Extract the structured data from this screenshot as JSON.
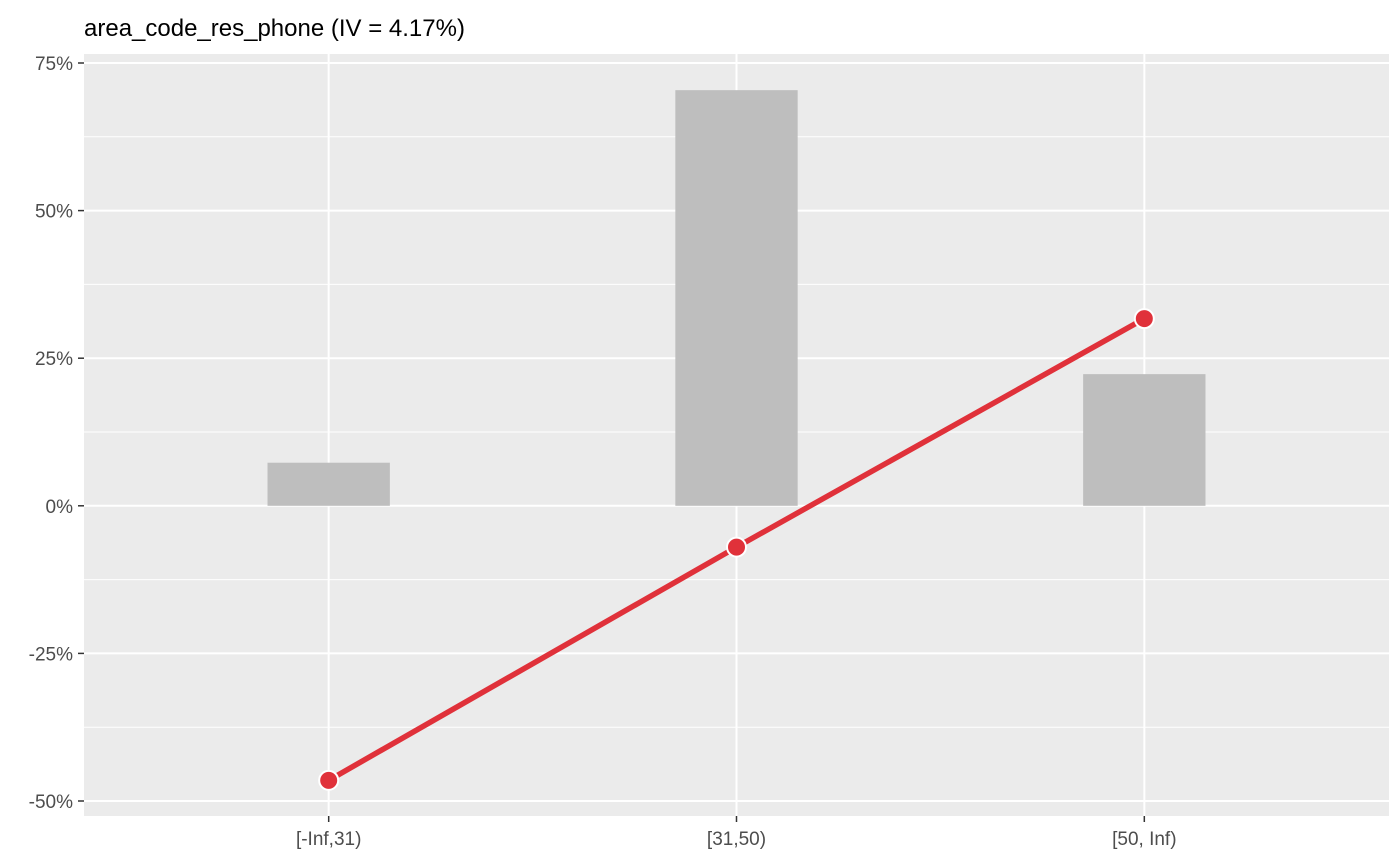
{
  "chart_data": {
    "type": "bar",
    "title": "area_code_res_phone (IV = 4.17%)",
    "xlabel": "",
    "ylabel": "",
    "categories": [
      "[-Inf,31)",
      "[31,50)",
      "[50, Inf)"
    ],
    "series": [
      {
        "kind": "bar",
        "values": [
          7.3,
          70.4,
          22.3
        ]
      },
      {
        "kind": "line",
        "values": [
          -46.5,
          -7.0,
          31.7
        ]
      }
    ],
    "ylim": [
      -52.5,
      75
    ],
    "y_ticks": [
      -50,
      -25,
      0,
      25,
      50,
      75
    ],
    "y_tick_labels": [
      "-50%",
      "-25%",
      "0%",
      "25%",
      "50%",
      "75%"
    ],
    "grid": true,
    "legend": "none",
    "colors": {
      "panel": "#ebebeb",
      "grid": "#ffffff",
      "bar": "#bebebe",
      "line": "#e0313a",
      "tick_text": "#4d4d4d",
      "tick_mark": "#333333"
    }
  }
}
